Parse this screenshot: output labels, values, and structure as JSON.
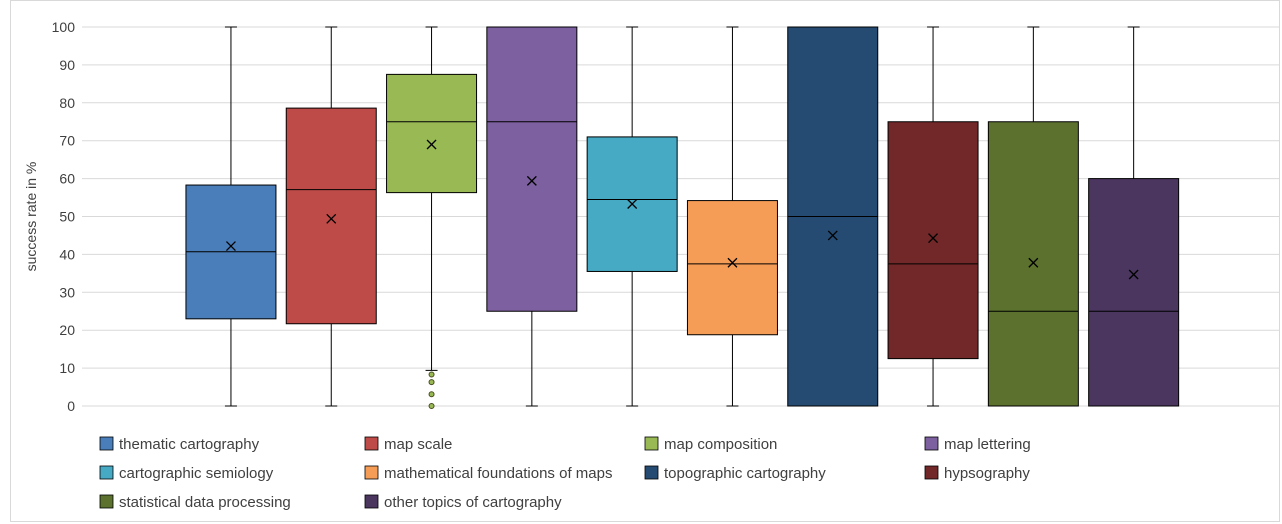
{
  "chart_data": {
    "type": "boxplot",
    "ylabel": "success rate in %",
    "ylim": [
      0,
      100
    ],
    "yticks": [
      0,
      10,
      20,
      30,
      40,
      50,
      60,
      70,
      80,
      90,
      100
    ],
    "grid": true,
    "legend_position": "bottom",
    "series": [
      {
        "name": "thematic cartography",
        "color": "#4a7ebb",
        "min": 0,
        "q1": 23,
        "median": 40.7,
        "q3": 58.3,
        "max": 100,
        "mean": 42.2,
        "outliers": []
      },
      {
        "name": "map scale",
        "color": "#be4b48",
        "min": 0,
        "q1": 21.7,
        "median": 57.1,
        "q3": 78.6,
        "max": 100,
        "mean": 49.4,
        "outliers": []
      },
      {
        "name": "map composition",
        "color": "#98b954",
        "min": 9.4,
        "q1": 56.3,
        "median": 75,
        "q3": 87.5,
        "max": 100,
        "mean": 69,
        "outliers": [
          0,
          3.1,
          6.3,
          8.3
        ]
      },
      {
        "name": "map lettering",
        "color": "#7d60a0",
        "min": 0,
        "q1": 25,
        "median": 75,
        "q3": 100,
        "max": 100,
        "mean": 59.4,
        "outliers": []
      },
      {
        "name": "cartographic semiology",
        "color": "#46aac5",
        "min": 0,
        "q1": 35.5,
        "median": 54.5,
        "q3": 71,
        "max": 100,
        "mean": 53.3,
        "outliers": []
      },
      {
        "name": "mathematical foundations of maps",
        "color": "#f59d56",
        "min": 0,
        "q1": 18.8,
        "median": 37.5,
        "q3": 54.2,
        "max": 100,
        "mean": 37.8,
        "outliers": []
      },
      {
        "name": "topographic cartography",
        "color": "#254b72",
        "min": 0,
        "q1": 0,
        "median": 50,
        "q3": 100,
        "max": 100,
        "mean": 45,
        "outliers": []
      },
      {
        "name": "hypsography",
        "color": "#722828",
        "min": 0,
        "q1": 12.5,
        "median": 37.5,
        "q3": 75,
        "max": 100,
        "mean": 44.3,
        "outliers": []
      },
      {
        "name": "statistical data processing",
        "color": "#5b712d",
        "min": 0,
        "q1": 0,
        "median": 25,
        "q3": 75,
        "max": 100,
        "mean": 37.8,
        "outliers": []
      },
      {
        "name": "other topics of cartography",
        "color": "#4b3660",
        "min": 0,
        "q1": 0,
        "median": 25,
        "q3": 60,
        "max": 100,
        "mean": 34.7,
        "outliers": []
      }
    ]
  }
}
